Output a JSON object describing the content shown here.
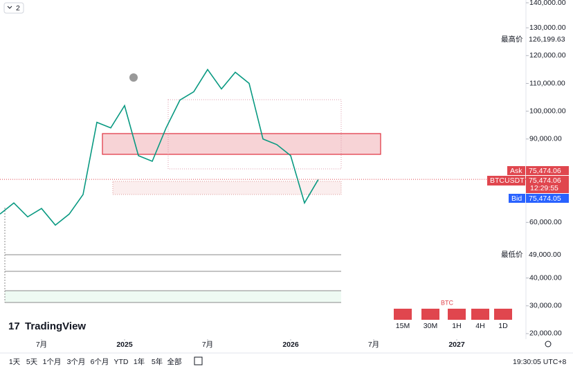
{
  "panel": {
    "collapse": "2"
  },
  "chart_data": {
    "type": "line",
    "x": [
      "2024-04",
      "2024-05",
      "2024-06",
      "2024-07",
      "2024-08",
      "2024-09",
      "2024-10",
      "2024-11",
      "2024-12",
      "2025-01",
      "2025-02",
      "2025-03",
      "2025-04",
      "2025-05",
      "2025-06",
      "2025-07",
      "2025-08",
      "2025-09",
      "2025-10",
      "2025-11",
      "2025-12",
      "2026-01",
      "2026-02",
      "2026-03"
    ],
    "series": [
      {
        "name": "BTCUSDT",
        "color": "#089981",
        "values": [
          63000,
          67000,
          62000,
          65000,
          59000,
          63000,
          70000,
          96000,
          94000,
          102000,
          84000,
          82000,
          94000,
          104000,
          107000,
          115000,
          108000,
          114000,
          110000,
          90000,
          88000,
          84000,
          67000,
          75474
        ]
      }
    ],
    "xlim": [
      "2024-04",
      "2027-06"
    ],
    "xticks": [
      {
        "value": "2024-07",
        "label": "7月"
      },
      {
        "value": "2025-01",
        "label": "2025"
      },
      {
        "value": "2025-07",
        "label": "7月"
      },
      {
        "value": "2026-01",
        "label": "2026"
      },
      {
        "value": "2026-07",
        "label": "7月"
      },
      {
        "value": "2027-01",
        "label": "2027"
      }
    ],
    "ylim": [
      18000,
      140000
    ],
    "yticks": [
      {
        "value": 140000,
        "label": "140,000.00"
      },
      {
        "value": 130000,
        "label": "130,000.00"
      },
      {
        "value": 120000,
        "label": "120,000.00"
      },
      {
        "value": 110000,
        "label": "110,000.00"
      },
      {
        "value": 100000,
        "label": "100,000.00"
      },
      {
        "value": 90000,
        "label": "90,000.00"
      },
      {
        "value": 60000,
        "label": "60,000.00"
      },
      {
        "value": 40000,
        "label": "40,000.00"
      },
      {
        "value": 30000,
        "label": "30,000.00"
      },
      {
        "value": 20000,
        "label": "20,000.00"
      }
    ]
  },
  "price_tags": {
    "high_label": "最高价",
    "high": "126,199.63",
    "low_label": "最低价",
    "low": "49,000.00",
    "ask_label": "Ask",
    "ask": "75,474.06",
    "symbol": "BTCUSDT",
    "last": "75,474.06",
    "countdown": "12:29:55",
    "bid_label": "Bid",
    "bid": "75,474.05"
  },
  "widget": {
    "title": "BTC",
    "buttons": [
      "15M",
      "30M",
      "1H",
      "4H",
      "1D"
    ]
  },
  "logo": "TradingView",
  "toolbar": {
    "ranges": [
      "1天",
      "5天",
      "1个月",
      "3个月",
      "6个月",
      "YTD",
      "1年",
      "5年",
      "全部"
    ],
    "clock": "19:30:05 UTC+8"
  }
}
